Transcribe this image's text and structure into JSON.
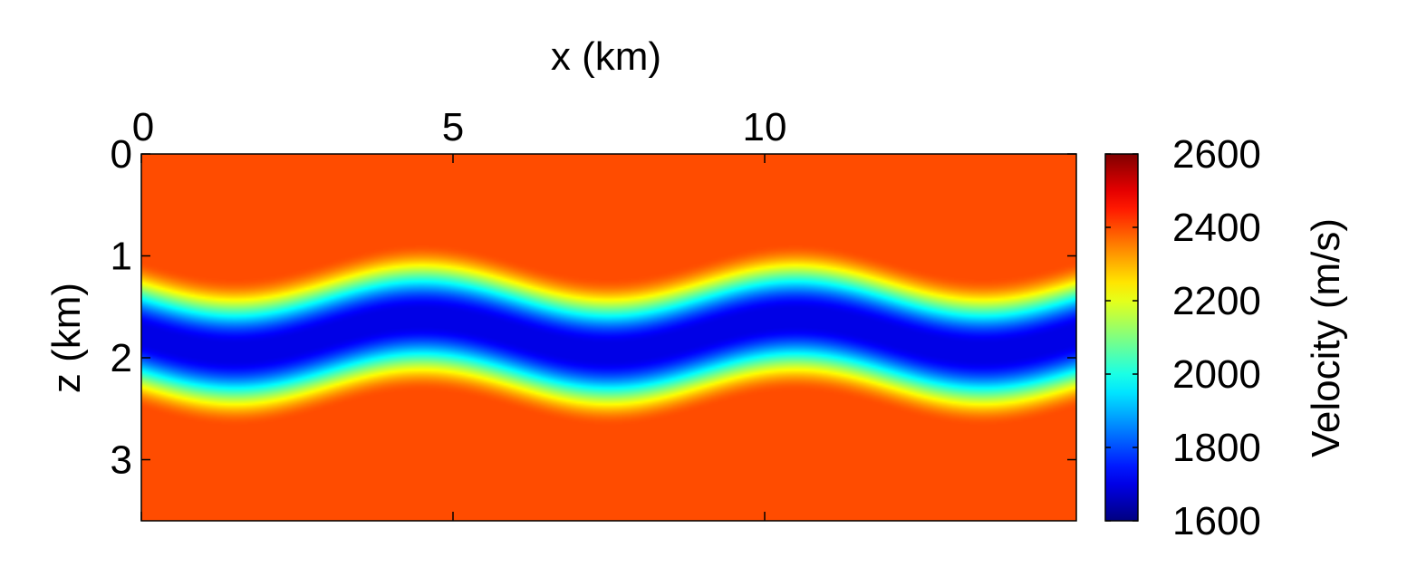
{
  "chart_data": {
    "type": "heatmap",
    "title": "",
    "xlabel": "x (km)",
    "ylabel": "z (km)",
    "colorbar_label": "Velocity (m/s)",
    "xlim": [
      0,
      15
    ],
    "ylim": [
      0,
      3.6
    ],
    "x_axis_position": "top",
    "y_axis_reversed": true,
    "grid": false,
    "colormap": "jet",
    "x_ticks": [
      0,
      5,
      10
    ],
    "x_tick_labels": [
      "0",
      "5",
      "10"
    ],
    "y_ticks": [
      0,
      1,
      2,
      3
    ],
    "y_tick_labels": [
      "0",
      "1",
      "2",
      "3"
    ],
    "colorbar": {
      "clim": [
        1600,
        2600
      ],
      "ticks": [
        1600,
        1800,
        2000,
        2200,
        2400,
        2600
      ],
      "tick_labels": [
        "1600",
        "1800",
        "2000",
        "2200",
        "2400",
        "2600"
      ],
      "placement": "right"
    },
    "model": {
      "background_velocity": 2400,
      "layer_velocity": 1700,
      "layer_top_mean_z": 1.05,
      "layer_bottom_mean_z": 2.5,
      "fold_amplitude_km": 0.17,
      "fold_wavelength_km": 6,
      "fold_crest_x": [
        4.5,
        10.4
      ],
      "transition_width_km": 0.65
    },
    "colors": {
      "background": "#ff4000",
      "layer_core": "#0050ff"
    }
  }
}
